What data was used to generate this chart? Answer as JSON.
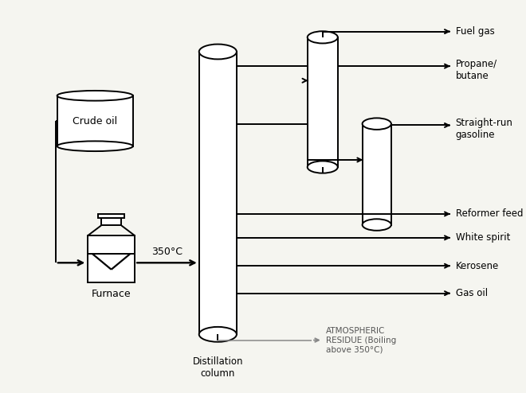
{
  "bg_color": "#f5f5f0",
  "line_color": "#000000",
  "labels": {
    "crude_oil": "Crude oil",
    "furnace": "Furnace",
    "distillation_col": "Distillation\ncolumn",
    "fuel_gas": "Fuel gas",
    "propane_butane": "Propane/\nbutane",
    "straight_run": "Straight-run\ngasoline",
    "reformer_feed": "Reformer feed",
    "white_spirit": "White spirit",
    "kerosene": "Kerosene",
    "gas_oil": "Gas oil",
    "temp": "350°C",
    "atm_residue": "ATMOSPHERIC\nRESIDUE (Boiling\nabove 350°C)"
  },
  "figsize": [
    6.6,
    4.94
  ],
  "dpi": 100
}
